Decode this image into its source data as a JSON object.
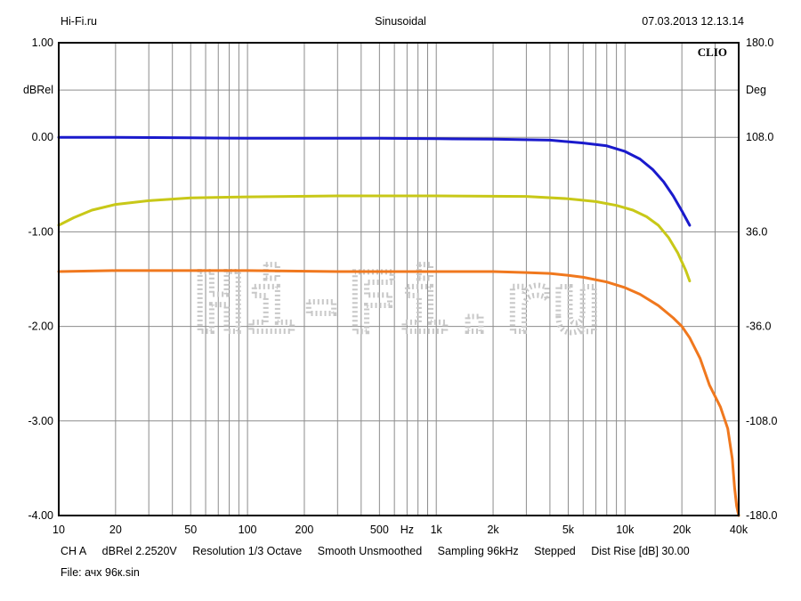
{
  "header": {
    "left": "Hi-Fi.ru",
    "center": "Sinusoidal",
    "right": "07.03.2013 12.13.14"
  },
  "brand": "CLIO",
  "watermark": "Hi-Fi.ru",
  "footer": {
    "channel": "CH A",
    "scale": "dBRel 2.2520V",
    "resolution": "Resolution 1/3 Octave",
    "smooth": "Smooth Unsmoothed",
    "sampling": "Sampling 96kHz",
    "mode": "Stepped",
    "dist_rise": "Dist Rise [dB] 30.00",
    "file": "File: ачх 96к.sin"
  },
  "chart_data": {
    "type": "line",
    "x_scale": "log",
    "xlim": [
      10,
      40000
    ],
    "ylim_left": [
      -4.0,
      1.0
    ],
    "ylim_right": [
      -180.0,
      180.0
    ],
    "ylabel_left": "dBRel",
    "ylabel_right": "Deg",
    "xlabel_unit": "Hz",
    "grid": true,
    "x_ticks": [
      "10",
      "20",
      "50",
      "100",
      "200",
      "500",
      "1k",
      "2k",
      "5k",
      "10k",
      "20k",
      "40k"
    ],
    "x_tick_values": [
      10,
      20,
      50,
      100,
      200,
      500,
      1000,
      2000,
      5000,
      10000,
      20000,
      40000
    ],
    "y_left_ticks": [
      "1.00",
      "dBRel",
      "0.00",
      "-1.00",
      "-2.00",
      "-3.00",
      "-4.00"
    ],
    "y_right_ticks": [
      "180.0",
      "Deg",
      "108.0",
      "36.0",
      "-36.0",
      "-108.0",
      "-180.0"
    ],
    "y_left_values": [
      1.0,
      0.0,
      -1.0,
      -2.0,
      -3.0,
      -4.0
    ],
    "series": [
      {
        "color": "#1a1acc",
        "x": [
          10,
          20,
          50,
          100,
          200,
          500,
          1000,
          2000,
          4000,
          6000,
          8000,
          10000,
          12000,
          14000,
          16000,
          18000,
          20000,
          22000
        ],
        "y": [
          0.0,
          0.0,
          -0.005,
          -0.01,
          -0.01,
          -0.01,
          -0.015,
          -0.02,
          -0.03,
          -0.06,
          -0.09,
          -0.15,
          -0.23,
          -0.34,
          -0.47,
          -0.62,
          -0.78,
          -0.93
        ]
      },
      {
        "color": "#c8c818",
        "x": [
          10,
          12,
          15,
          20,
          30,
          50,
          100,
          300,
          1000,
          3000,
          5000,
          7000,
          9000,
          11000,
          13000,
          15000,
          17000,
          19000,
          21000,
          22000
        ],
        "y": [
          -0.93,
          -0.85,
          -0.77,
          -0.71,
          -0.67,
          -0.64,
          -0.63,
          -0.62,
          -0.62,
          -0.625,
          -0.65,
          -0.68,
          -0.72,
          -0.77,
          -0.84,
          -0.93,
          -1.06,
          -1.22,
          -1.41,
          -1.52
        ]
      },
      {
        "color": "#f0781e",
        "x": [
          10,
          20,
          50,
          100,
          300,
          1000,
          2000,
          3000,
          4000,
          5000,
          6000,
          8000,
          10000,
          12000,
          15000,
          18000,
          20000,
          22000,
          25000,
          28000,
          32000,
          35000,
          37000,
          38000,
          39000,
          40000
        ],
        "y": [
          -1.42,
          -1.41,
          -1.41,
          -1.41,
          -1.42,
          -1.42,
          -1.42,
          -1.43,
          -1.44,
          -1.46,
          -1.48,
          -1.53,
          -1.59,
          -1.66,
          -1.78,
          -1.91,
          -2.0,
          -2.12,
          -2.34,
          -2.62,
          -2.85,
          -3.08,
          -3.4,
          -3.7,
          -3.9,
          -4.0
        ]
      }
    ]
  }
}
